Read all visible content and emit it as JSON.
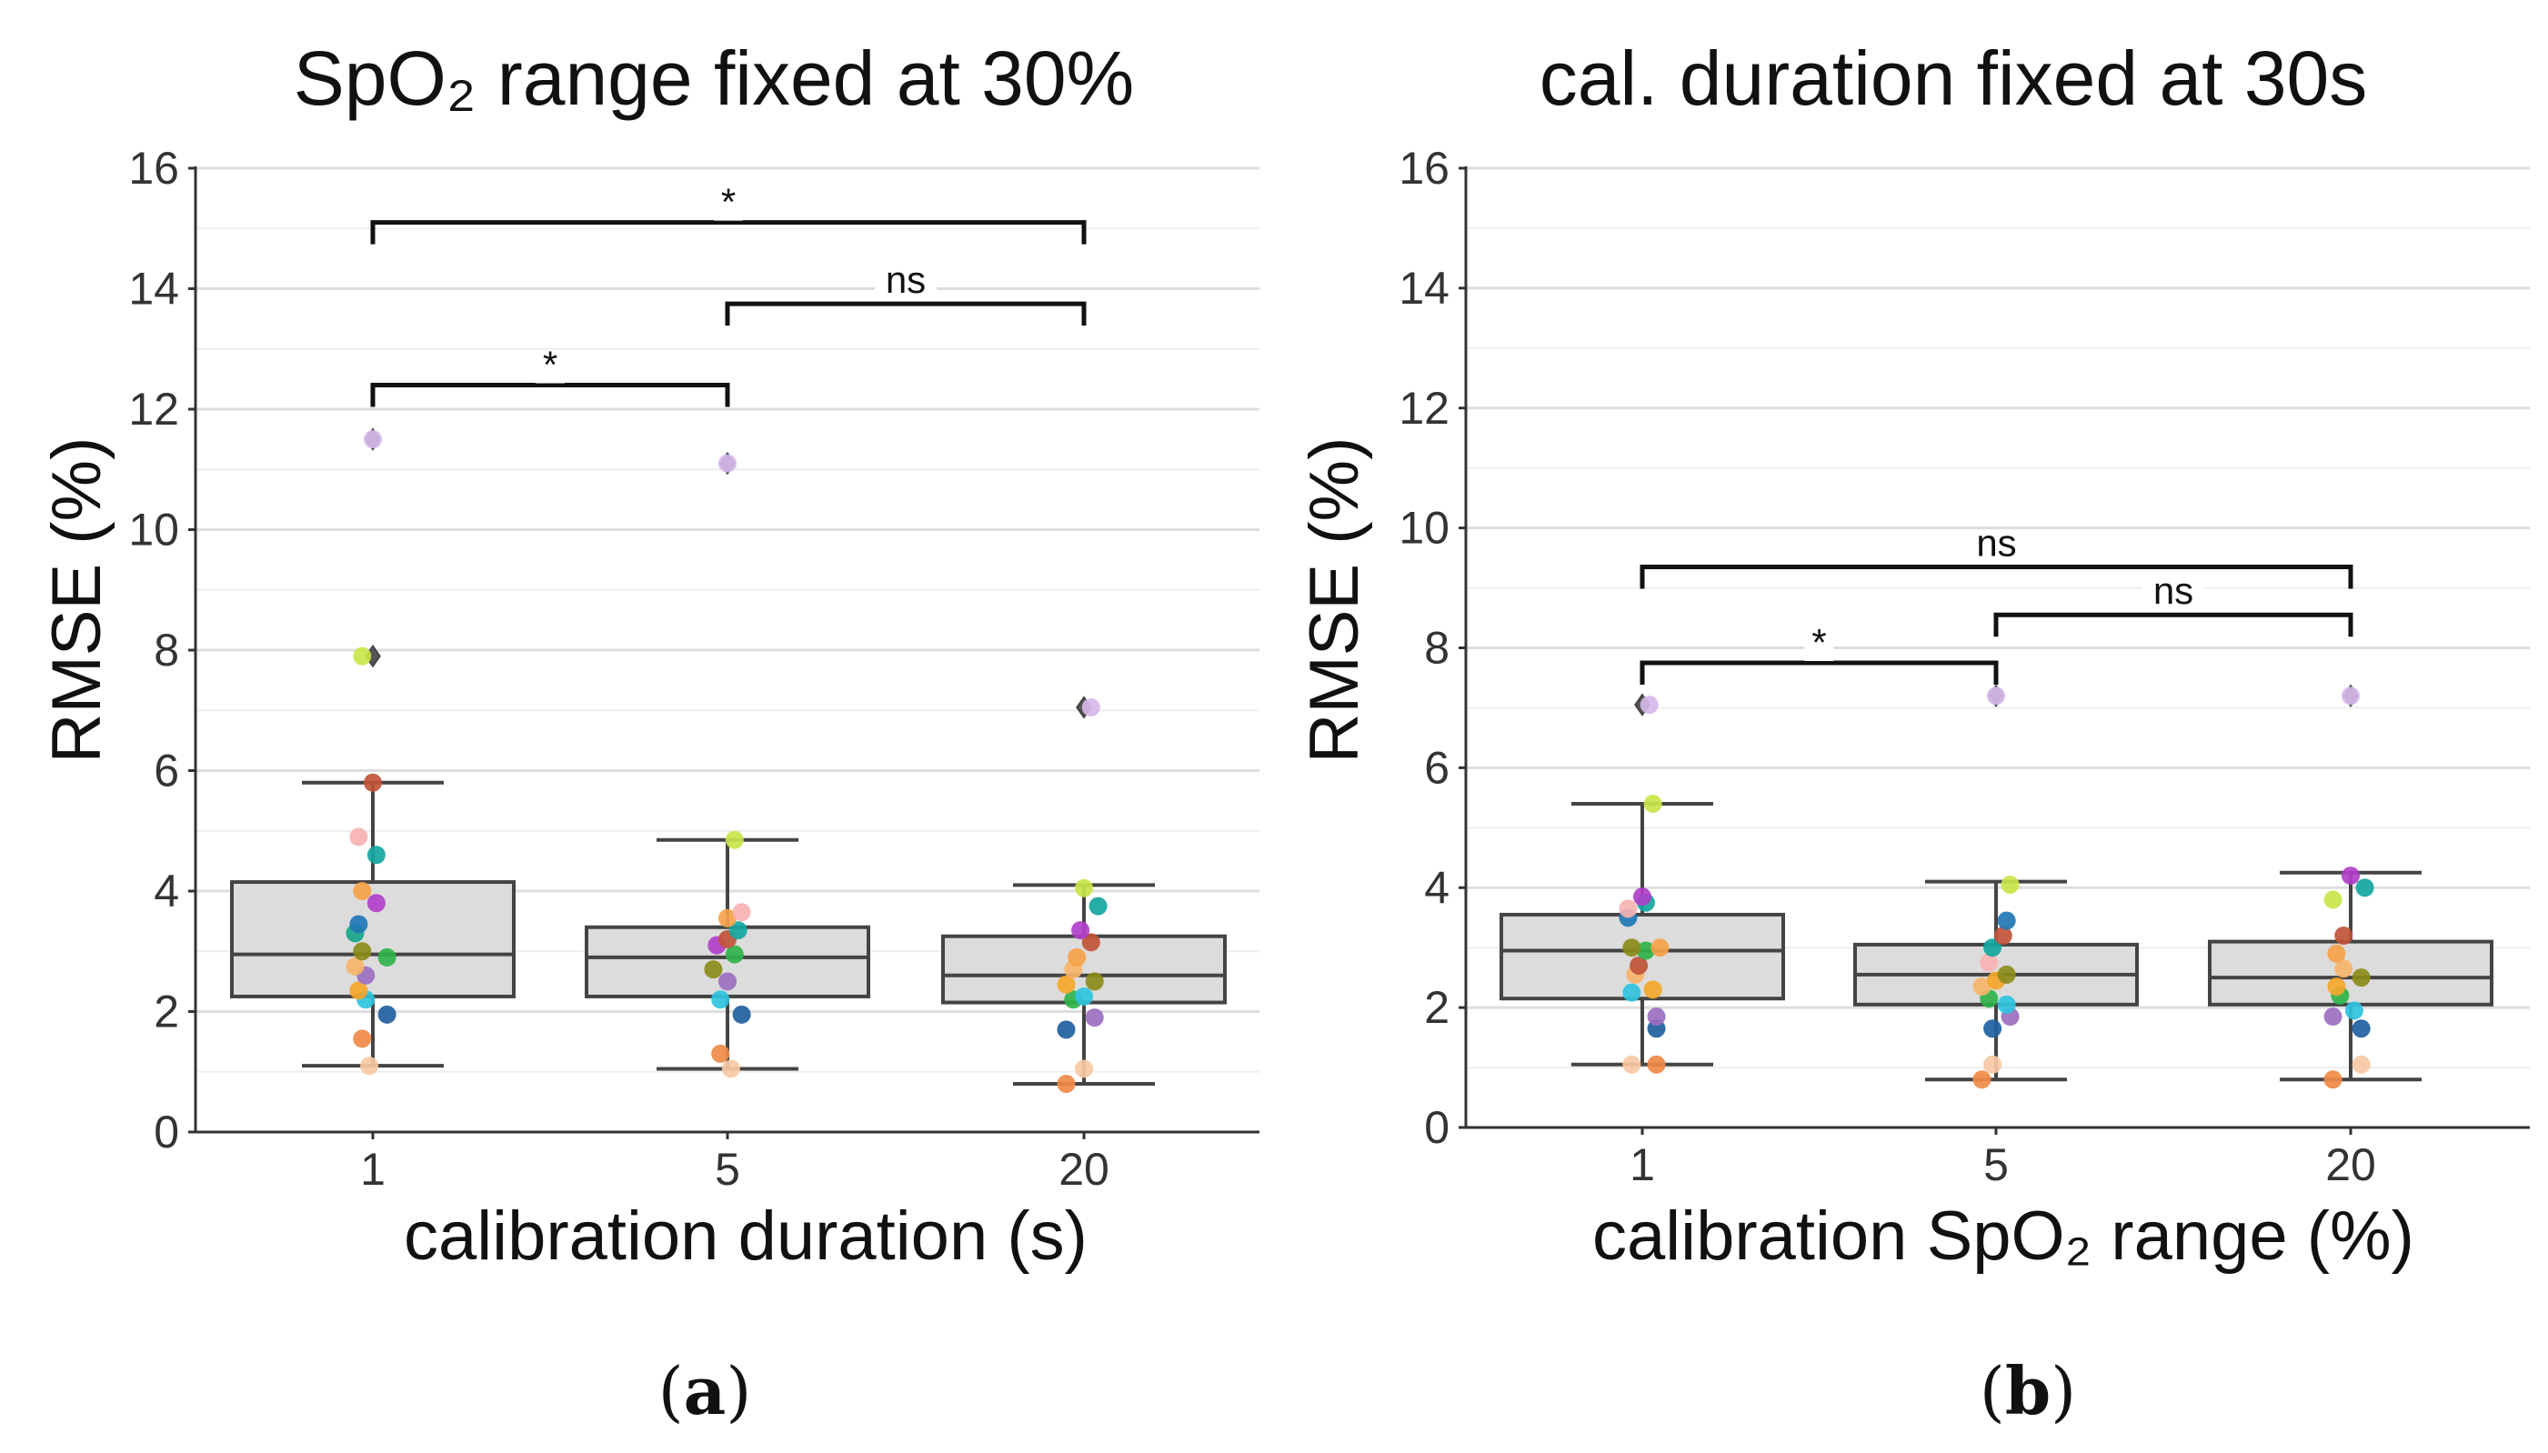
{
  "chart_data": [
    {
      "type": "box",
      "panel_label": "a",
      "title": "SpO₂ range fixed at 30%",
      "xlabel": "calibration duration (s)",
      "ylabel": "RMSE (%)",
      "ylim": [
        0,
        16
      ],
      "yticks": [
        "0",
        "2",
        "4",
        "6",
        "8",
        "10",
        "12",
        "14",
        "16"
      ],
      "categories": [
        "1",
        "5",
        "20"
      ],
      "boxes": [
        {
          "q1": 2.25,
          "median": 2.95,
          "q3": 4.15,
          "whisker_low": 1.1,
          "whisker_high": 5.8,
          "outliers": [
            7.9,
            11.5
          ]
        },
        {
          "q1": 2.25,
          "median": 2.9,
          "q3": 3.4,
          "whisker_low": 1.05,
          "whisker_high": 4.85,
          "outliers": [
            11.1
          ]
        },
        {
          "q1": 2.15,
          "median": 2.6,
          "q3": 3.25,
          "whisker_low": 0.8,
          "whisker_high": 4.1,
          "outliers": [
            7.05
          ]
        }
      ],
      "points": [
        [
          {
            "dx": -0.01,
            "y": 1.1,
            "color": "#f8c9a4"
          },
          {
            "dx": -0.03,
            "y": 1.55,
            "color": "#ef8a45"
          },
          {
            "dx": 0.04,
            "y": 1.95,
            "color": "#1f5fa0"
          },
          {
            "dx": -0.02,
            "y": 2.2,
            "color": "#2ec3e0"
          },
          {
            "dx": -0.04,
            "y": 2.35,
            "color": "#f4a62a"
          },
          {
            "dx": -0.02,
            "y": 2.6,
            "color": "#9b6fc0"
          },
          {
            "dx": -0.05,
            "y": 2.75,
            "color": "#f6b46a"
          },
          {
            "dx": 0.04,
            "y": 2.9,
            "color": "#2fb34a"
          },
          {
            "dx": -0.03,
            "y": 3.0,
            "color": "#8b8b1a"
          },
          {
            "dx": -0.05,
            "y": 3.3,
            "color": "#17a589"
          },
          {
            "dx": -0.04,
            "y": 3.45,
            "color": "#1f77b4"
          },
          {
            "dx": 0.01,
            "y": 3.8,
            "color": "#b03fc9"
          },
          {
            "dx": -0.03,
            "y": 4.0,
            "color": "#f6a24a"
          },
          {
            "dx": 0.01,
            "y": 4.6,
            "color": "#15a6a0"
          },
          {
            "dx": -0.04,
            "y": 4.9,
            "color": "#f7b2b2"
          },
          {
            "dx": -0.0,
            "y": 5.8,
            "color": "#c0523a"
          },
          {
            "dx": -0.03,
            "y": 7.9,
            "color": "#c8e64a"
          },
          {
            "dx": 0.0,
            "y": 11.5,
            "color": "#d6b8ea"
          }
        ],
        [
          {
            "dx": 0.01,
            "y": 1.05,
            "color": "#f8c9a4"
          },
          {
            "dx": -0.02,
            "y": 1.3,
            "color": "#ef8a45"
          },
          {
            "dx": 0.04,
            "y": 1.95,
            "color": "#1f5fa0"
          },
          {
            "dx": -0.02,
            "y": 2.2,
            "color": "#2ec3e0"
          },
          {
            "dx": 0.0,
            "y": 2.5,
            "color": "#9b6fc0"
          },
          {
            "dx": -0.04,
            "y": 2.7,
            "color": "#8b8b1a"
          },
          {
            "dx": 0.02,
            "y": 2.95,
            "color": "#2fb34a"
          },
          {
            "dx": -0.03,
            "y": 3.1,
            "color": "#b03fc9"
          },
          {
            "dx": 0.0,
            "y": 3.2,
            "color": "#c0523a"
          },
          {
            "dx": 0.03,
            "y": 3.35,
            "color": "#15a6a0"
          },
          {
            "dx": 0.0,
            "y": 3.55,
            "color": "#f6a24a"
          },
          {
            "dx": 0.04,
            "y": 3.65,
            "color": "#f7b2b2"
          },
          {
            "dx": 0.02,
            "y": 4.85,
            "color": "#c8e64a"
          },
          {
            "dx": 0.0,
            "y": 11.1,
            "color": "#d6b8ea"
          }
        ],
        [
          {
            "dx": -0.05,
            "y": 0.8,
            "color": "#ef8a45"
          },
          {
            "dx": 0.0,
            "y": 1.05,
            "color": "#f8c9a4"
          },
          {
            "dx": -0.05,
            "y": 1.7,
            "color": "#1f5fa0"
          },
          {
            "dx": 0.03,
            "y": 1.9,
            "color": "#9b6fc0"
          },
          {
            "dx": -0.03,
            "y": 2.2,
            "color": "#2fb34a"
          },
          {
            "dx": 0.0,
            "y": 2.25,
            "color": "#2ec3e0"
          },
          {
            "dx": -0.05,
            "y": 2.45,
            "color": "#f4a62a"
          },
          {
            "dx": 0.03,
            "y": 2.5,
            "color": "#8b8b1a"
          },
          {
            "dx": -0.03,
            "y": 2.7,
            "color": "#f6b46a"
          },
          {
            "dx": -0.02,
            "y": 2.9,
            "color": "#f6a24a"
          },
          {
            "dx": 0.02,
            "y": 3.15,
            "color": "#c0523a"
          },
          {
            "dx": -0.01,
            "y": 3.35,
            "color": "#b03fc9"
          },
          {
            "dx": 0.04,
            "y": 3.75,
            "color": "#15a6a0"
          },
          {
            "dx": -0.0,
            "y": 4.05,
            "color": "#c8e64a"
          },
          {
            "dx": 0.02,
            "y": 7.05,
            "color": "#d6b8ea"
          }
        ]
      ],
      "significance": [
        {
          "from": 0,
          "to": 2,
          "y": 15.1,
          "label": "*"
        },
        {
          "from": 1,
          "to": 2,
          "y": 13.75,
          "label": "ns"
        },
        {
          "from": 0,
          "to": 1,
          "y": 12.4,
          "label": "*"
        }
      ]
    },
    {
      "type": "box",
      "panel_label": "b",
      "title": "cal. duration fixed at 30s",
      "xlabel": "calibration SpO₂ range (%)",
      "ylabel": "RMSE (%)",
      "ylim": [
        0,
        16
      ],
      "yticks": [
        "0",
        "2",
        "4",
        "6",
        "8",
        "10",
        "12",
        "14",
        "16"
      ],
      "categories": [
        "1",
        "5",
        "20"
      ],
      "boxes": [
        {
          "q1": 2.15,
          "median": 2.95,
          "q3": 3.55,
          "whisker_low": 1.05,
          "whisker_high": 5.4,
          "outliers": [
            7.05
          ]
        },
        {
          "q1": 2.05,
          "median": 2.55,
          "q3": 3.05,
          "whisker_low": 0.8,
          "whisker_high": 4.1,
          "outliers": [
            7.2
          ]
        },
        {
          "q1": 2.05,
          "median": 2.5,
          "q3": 3.1,
          "whisker_low": 0.8,
          "whisker_high": 4.25,
          "outliers": [
            7.2
          ]
        }
      ],
      "points": [
        [
          {
            "dx": -0.03,
            "y": 1.05,
            "color": "#f8c9a4"
          },
          {
            "dx": 0.04,
            "y": 1.05,
            "color": "#ef8a45"
          },
          {
            "dx": 0.04,
            "y": 1.65,
            "color": "#1f5fa0"
          },
          {
            "dx": 0.04,
            "y": 1.85,
            "color": "#9b6fc0"
          },
          {
            "dx": -0.03,
            "y": 2.25,
            "color": "#2ec3e0"
          },
          {
            "dx": 0.03,
            "y": 2.3,
            "color": "#f4a62a"
          },
          {
            "dx": -0.02,
            "y": 2.55,
            "color": "#f6b46a"
          },
          {
            "dx": -0.01,
            "y": 2.7,
            "color": "#c0523a"
          },
          {
            "dx": 0.01,
            "y": 2.95,
            "color": "#2fb34a"
          },
          {
            "dx": -0.03,
            "y": 3.0,
            "color": "#8b8b1a"
          },
          {
            "dx": 0.05,
            "y": 3.0,
            "color": "#f6a24a"
          },
          {
            "dx": -0.04,
            "y": 3.5,
            "color": "#1f77b4"
          },
          {
            "dx": -0.04,
            "y": 3.65,
            "color": "#f7b2b2"
          },
          {
            "dx": 0.01,
            "y": 3.75,
            "color": "#15a6a0"
          },
          {
            "dx": -0.0,
            "y": 3.85,
            "color": "#b03fc9"
          },
          {
            "dx": 0.03,
            "y": 5.4,
            "color": "#c8e64a"
          },
          {
            "dx": 0.02,
            "y": 7.05,
            "color": "#d6b8ea"
          }
        ],
        [
          {
            "dx": -0.04,
            "y": 0.8,
            "color": "#ef8a45"
          },
          {
            "dx": -0.01,
            "y": 1.05,
            "color": "#f8c9a4"
          },
          {
            "dx": -0.01,
            "y": 1.65,
            "color": "#1f5fa0"
          },
          {
            "dx": 0.04,
            "y": 1.85,
            "color": "#9b6fc0"
          },
          {
            "dx": -0.02,
            "y": 2.15,
            "color": "#2fb34a"
          },
          {
            "dx": 0.03,
            "y": 2.05,
            "color": "#2ec3e0"
          },
          {
            "dx": -0.04,
            "y": 2.35,
            "color": "#f6b46a"
          },
          {
            "dx": 0.0,
            "y": 2.45,
            "color": "#f4a62a"
          },
          {
            "dx": 0.03,
            "y": 2.55,
            "color": "#8b8b1a"
          },
          {
            "dx": -0.02,
            "y": 2.75,
            "color": "#f7b2b2"
          },
          {
            "dx": -0.01,
            "y": 3.0,
            "color": "#15a6a0"
          },
          {
            "dx": 0.02,
            "y": 3.2,
            "color": "#c0523a"
          },
          {
            "dx": 0.03,
            "y": 3.45,
            "color": "#1f77b4"
          },
          {
            "dx": 0.04,
            "y": 4.05,
            "color": "#c8e64a"
          },
          {
            "dx": 0.0,
            "y": 7.2,
            "color": "#d6b8ea"
          }
        ],
        [
          {
            "dx": -0.05,
            "y": 0.8,
            "color": "#ef8a45"
          },
          {
            "dx": 0.03,
            "y": 1.05,
            "color": "#f8c9a4"
          },
          {
            "dx": 0.03,
            "y": 1.65,
            "color": "#1f5fa0"
          },
          {
            "dx": -0.05,
            "y": 1.85,
            "color": "#9b6fc0"
          },
          {
            "dx": 0.01,
            "y": 1.95,
            "color": "#2ec3e0"
          },
          {
            "dx": -0.03,
            "y": 2.2,
            "color": "#2fb34a"
          },
          {
            "dx": -0.04,
            "y": 2.35,
            "color": "#f4a62a"
          },
          {
            "dx": 0.03,
            "y": 2.5,
            "color": "#8b8b1a"
          },
          {
            "dx": -0.02,
            "y": 2.65,
            "color": "#f6b46a"
          },
          {
            "dx": -0.04,
            "y": 2.9,
            "color": "#f6a24a"
          },
          {
            "dx": -0.02,
            "y": 3.2,
            "color": "#c0523a"
          },
          {
            "dx": -0.05,
            "y": 3.8,
            "color": "#c8e64a"
          },
          {
            "dx": 0.04,
            "y": 4.0,
            "color": "#15a6a0"
          },
          {
            "dx": -0.0,
            "y": 4.2,
            "color": "#b03fc9"
          },
          {
            "dx": 0.0,
            "y": 7.2,
            "color": "#d6b8ea"
          }
        ]
      ],
      "significance": [
        {
          "from": 0,
          "to": 2,
          "y": 9.35,
          "label": "ns"
        },
        {
          "from": 1,
          "to": 2,
          "y": 8.55,
          "label": "ns"
        },
        {
          "from": 0,
          "to": 1,
          "y": 7.75,
          "label": "*"
        }
      ]
    }
  ]
}
